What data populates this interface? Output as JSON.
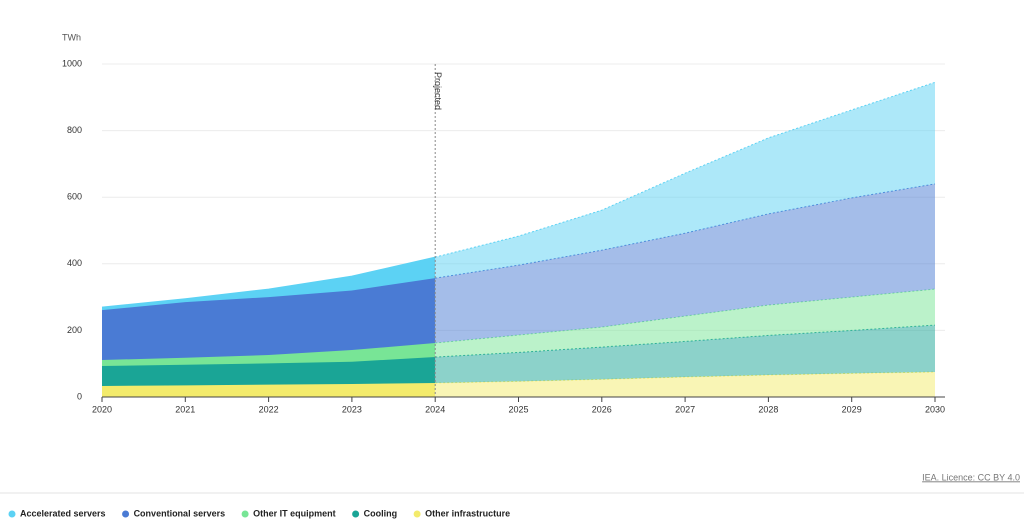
{
  "chart_data": {
    "type": "stacked_area",
    "y_label": "TWh",
    "categories": [
      "2020",
      "2021",
      "2022",
      "2023",
      "2024",
      "2025",
      "2026",
      "2027",
      "2028",
      "2029",
      "2030"
    ],
    "series": [
      {
        "name": "Accelerated servers",
        "color": "#5cd2f4",
        "values": [
          9,
          10,
          24,
          43,
          63,
          87,
          120,
          180,
          228,
          264,
          305
        ]
      },
      {
        "name": "Conventional servers",
        "color": "#4a7bd4",
        "values": [
          150,
          167,
          174,
          179,
          195,
          210,
          231,
          249,
          274,
          298,
          316
        ]
      },
      {
        "name": "Other IT equipment",
        "color": "#78e596",
        "values": [
          18,
          21,
          25,
          35,
          42,
          52,
          60,
          76,
          91,
          100,
          108
        ]
      },
      {
        "name": "Cooling",
        "color": "#1aa596",
        "values": [
          60,
          62,
          64,
          67,
          78,
          87,
          97,
          107,
          119,
          129,
          141
        ]
      },
      {
        "name": "Other infrastructure",
        "color": "#f3eb6c",
        "values": [
          33,
          35,
          37,
          39,
          42,
          47,
          53,
          60,
          66,
          71,
          75
        ]
      }
    ],
    "ylim": [
      0,
      1000
    ],
    "yticks": [
      0,
      200,
      400,
      600,
      800,
      1000
    ],
    "grid": true,
    "annotation": {
      "text": "Projected",
      "x": "2024"
    },
    "source": "IEA. Licence: CC BY 4.0"
  }
}
